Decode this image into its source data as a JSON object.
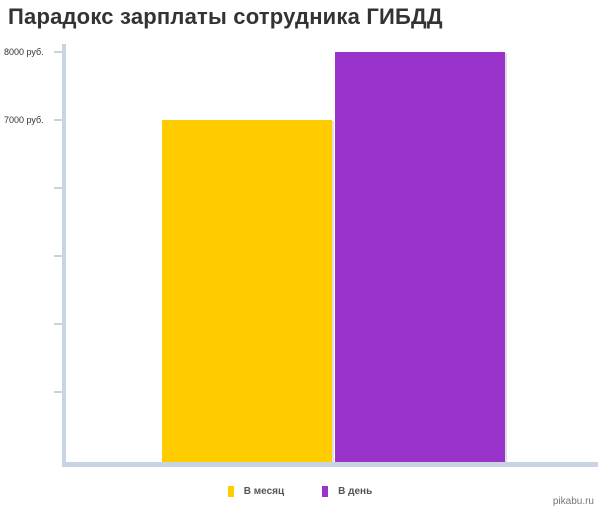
{
  "chart_data": {
    "type": "bar",
    "title": "Парадокс зарплаты сотрудника ГИБДД",
    "categories": [
      "В месяц",
      "В день"
    ],
    "values": [
      7000,
      8000
    ],
    "colors": [
      "#ffcc00",
      "#9933cc"
    ],
    "ylim": [
      2000,
      8000
    ],
    "yticks": [
      {
        "value": 8000,
        "label": "8000 руб."
      },
      {
        "value": 7000,
        "label": "7000 руб."
      },
      {
        "value": 6000,
        "label": ""
      },
      {
        "value": 5000,
        "label": ""
      },
      {
        "value": 4000,
        "label": ""
      },
      {
        "value": 3000,
        "label": ""
      }
    ],
    "legend": {
      "position": "bottom",
      "entries": [
        "В месяц",
        "В день"
      ]
    },
    "grid": false
  },
  "watermark": "pikabu.ru"
}
